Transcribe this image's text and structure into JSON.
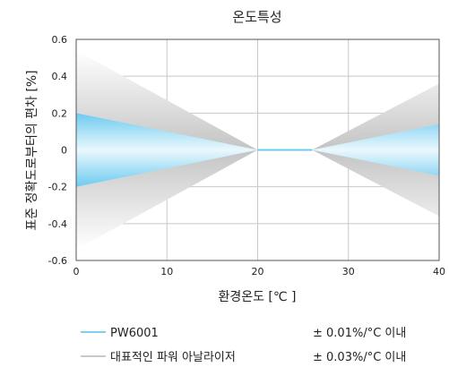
{
  "chart_data": {
    "type": "area",
    "title": "온도특성",
    "xlabel": "환경온도 [℃ ]",
    "ylabel": "표준 정확도로부터의 편차 [%]",
    "xlim": [
      0,
      40
    ],
    "ylim": [
      -0.6,
      0.6
    ],
    "xticks": [
      "0",
      "10",
      "20",
      "30",
      "40"
    ],
    "yticks": [
      "0.6",
      "0.4",
      "0.2",
      "0",
      "-0.2",
      "-0.4",
      "-0.6"
    ],
    "xtick_values": [
      0,
      10,
      20,
      30,
      40
    ],
    "ytick_values": [
      0.6,
      0.4,
      0.2,
      0,
      -0.2,
      -0.4,
      -0.6
    ],
    "grid": true,
    "series": [
      {
        "name": "대표적인 파워 아날라이저",
        "spec": "± 0.03%/°C 이내",
        "color": "#c8c8c8",
        "x": [
          0,
          20,
          26,
          40
        ],
        "upper": [
          0.54,
          0,
          0,
          0.36
        ],
        "lower": [
          -0.54,
          0,
          0,
          -0.36
        ]
      },
      {
        "name": "PW6001",
        "spec": "± 0.01%/°C 이내",
        "color": "#7fd0f0",
        "x": [
          0,
          20,
          26,
          40
        ],
        "upper": [
          0.2,
          0,
          0,
          0.14
        ],
        "lower": [
          -0.2,
          0,
          0,
          -0.14
        ]
      }
    ],
    "legend": [
      {
        "label": "PW6001",
        "spec": "± 0.01%/°C 이내",
        "color": "#7fd0f0"
      },
      {
        "label": "대표적인 파워 아날라이저",
        "spec": "± 0.03%/°C 이내",
        "color": "#c8c8c8"
      }
    ]
  }
}
